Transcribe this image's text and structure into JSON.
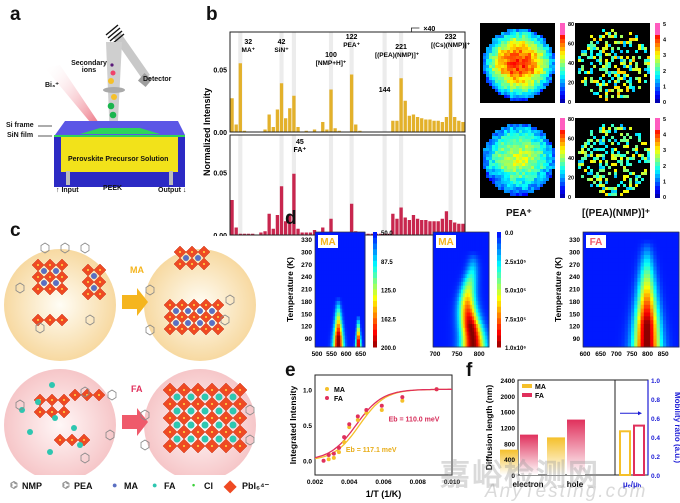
{
  "panel_labels": {
    "a": "a",
    "b": "b",
    "c": "c",
    "d": "d",
    "e": "e",
    "f": "f"
  },
  "panel_a": {
    "secondary_ions": "Secondary ions",
    "detector": "Detector",
    "beam": "Bi₃⁺",
    "si_frame": "Si frame",
    "sin_film": "SiN film",
    "solution": "Perovskite Precursor Solution",
    "peek": "PEEK",
    "input": "Input",
    "output": "Output",
    "colors": {
      "frame": "#5b57e6",
      "film": "#2fd35a",
      "solution": "#f2e21a",
      "base": "#2c2ac4"
    }
  },
  "chart_data": [
    {
      "id": "panel_b",
      "type": "bar",
      "title": "",
      "xlabel": "m/z",
      "ylabel": "Normalized Intensity",
      "scale_note": "×40",
      "ylim": [
        0,
        0.08
      ],
      "y_ticks": [
        "0.00",
        "0.05"
      ],
      "x_segments": [
        {
          "range": [
            30,
            45
          ],
          "ticks": [
            "30",
            "35",
            "40",
            "45"
          ]
        },
        {
          "range": [
            95,
            125
          ],
          "ticks": [
            "100",
            "120"
          ]
        },
        {
          "range": [
            140,
            145
          ],
          "ticks": [
            "140",
            "145"
          ]
        },
        {
          "range": [
            220,
            235
          ],
          "ticks": [
            "220",
            "225",
            "230",
            "235"
          ]
        }
      ],
      "annotations_top": [
        {
          "mz": "32",
          "label": "MA⁺"
        },
        {
          "mz": "42",
          "label": "SiN⁺"
        },
        {
          "mz": "100",
          "label": "[NMP+H]⁺"
        },
        {
          "mz": "122",
          "label": "PEA⁺"
        },
        {
          "mz": "144",
          "label": ""
        },
        {
          "mz": "221",
          "label": "[(PEA)(NMP)]⁺"
        },
        {
          "mz": "232",
          "label": "[(Cs)(NMP)]⁺"
        }
      ],
      "annotations_bottom": [
        {
          "mz": "45",
          "label": "FA⁺"
        }
      ],
      "series": [
        {
          "name": "MA",
          "color": "#e3b12b",
          "values": [
            0.027,
            0.006,
            0.055,
            0.001,
            0.0,
            0.0,
            0.0,
            0.0,
            0.002,
            0.014,
            0.004,
            0.018,
            0.039,
            0.011,
            0.019,
            0.029,
            0.004,
            0.0,
            0.001,
            0.0,
            0.002,
            0.0,
            0.008,
            0.002,
            0.034,
            0.003,
            0.001,
            0.0,
            0.0,
            0.046,
            0.006,
            0.001,
            0.0,
            0.0,
            0.0,
            0.0,
            0.0,
            0.0,
            0.0,
            0.009,
            0.009,
            0.043,
            0.025,
            0.013,
            0.014,
            0.012,
            0.011,
            0.01,
            0.01,
            0.009,
            0.009,
            0.008,
            0.012,
            0.044,
            0.012,
            0.009,
            0.008
          ]
        },
        {
          "name": "FA",
          "color": "#c8264e",
          "values": [
            0.028,
            0.006,
            0.001,
            0.001,
            0.001,
            0.001,
            0.0,
            0.002,
            0.003,
            0.017,
            0.005,
            0.016,
            0.039,
            0.011,
            0.016,
            0.049,
            0.005,
            0.002,
            0.002,
            0.002,
            0.004,
            0.001,
            0.006,
            0.002,
            0.013,
            0.002,
            0.001,
            0.002,
            0.002,
            0.025,
            0.003,
            0.001,
            0.001,
            0.001,
            0.001,
            0.001,
            0.001,
            0.001,
            0.001,
            0.017,
            0.013,
            0.022,
            0.014,
            0.012,
            0.016,
            0.013,
            0.012,
            0.012,
            0.011,
            0.011,
            0.011,
            0.013,
            0.019,
            0.012,
            0.01,
            0.009,
            0.009
          ]
        }
      ]
    },
    {
      "id": "panel_b_maps",
      "type": "heatmap",
      "labels": [
        "PEA⁺",
        "[(PEA)(NMP)]⁺"
      ],
      "colorbar_left": [
        "80",
        "60",
        "40",
        "20",
        "0"
      ],
      "colorbar_right": [
        "5",
        "4",
        "3",
        "2",
        "1",
        "0"
      ]
    },
    {
      "id": "panel_d",
      "type": "heatmap",
      "xlabel": "Wavelength (nm)",
      "ylabel": "Temperature (K)",
      "y_ticks": [
        "330",
        "300",
        "270",
        "240",
        "210",
        "180",
        "150",
        "120",
        "90"
      ],
      "plots": [
        {
          "tag": "MA",
          "x_ticks": [
            "500",
            "550",
            "600",
            "650"
          ],
          "colorbar": [
            "50.0",
            "87.5",
            "125.0",
            "162.5",
            "200.0"
          ]
        },
        {
          "tag": "MA",
          "x_ticks": [
            "700",
            "750",
            "800"
          ],
          "colorbar": [
            "0.0",
            "2.5x10⁵",
            "5.0x10⁵",
            "7.5x10⁵",
            "1.0x10⁶"
          ]
        },
        {
          "tag": "FA",
          "x_ticks": [
            "600",
            "650",
            "700",
            "750",
            "800",
            "850"
          ],
          "colorbar": [
            "0.0",
            "2.5x10⁵",
            "5.0x10⁵",
            "7.5x10⁵",
            "1.0x10⁶"
          ]
        }
      ]
    },
    {
      "id": "panel_e",
      "type": "scatter",
      "xlabel": "1/T (1/K)",
      "ylabel": "Integrated Intensity",
      "xlim": [
        0.002,
        0.01
      ],
      "ylim": [
        -0.2,
        1.2
      ],
      "x_ticks": [
        "0.002",
        "0.004",
        "0.006",
        "0.008",
        "0.010"
      ],
      "y_ticks": [
        "0.0",
        "0.5",
        "1.0"
      ],
      "series": [
        {
          "name": "MA",
          "color": "#f5c02a",
          "fit_label": "E_b = 117.1 meV",
          "x": [
            0.0028,
            0.0031,
            0.0034,
            0.0037,
            0.004,
            0.0045,
            0.005,
            0.0059,
            0.0071,
            0.0091
          ],
          "y": [
            0.02,
            0.04,
            0.12,
            0.26,
            0.47,
            0.57,
            0.67,
            0.71,
            0.84,
            1.0
          ]
        },
        {
          "name": "FA",
          "color": "#e0305c",
          "fit_label": "E_b = 110.0 meV",
          "x": [
            0.0025,
            0.0028,
            0.0031,
            0.0034,
            0.0037,
            0.004,
            0.0045,
            0.005,
            0.0059,
            0.0071,
            0.0091
          ],
          "y": [
            0.0,
            0.08,
            0.1,
            0.18,
            0.33,
            0.51,
            0.62,
            0.71,
            0.77,
            0.89,
            1.0
          ]
        }
      ],
      "fits": [
        {
          "name": "MA",
          "color": "#f5c02a",
          "x0": 0.0046,
          "k": 1350
        },
        {
          "name": "FA",
          "color": "#e0305c",
          "x0": 0.0044,
          "k": 1300
        }
      ]
    },
    {
      "id": "panel_f",
      "type": "bar",
      "ylabel": "Diffusion length (nm)",
      "y2label": "Mobility ratio (a.u.)",
      "ylim": [
        0,
        2400
      ],
      "y2lim": [
        0,
        1.0
      ],
      "y_ticks": [
        "0",
        "400",
        "800",
        "1200",
        "1600",
        "2000",
        "2400"
      ],
      "y2_ticks": [
        "0.0",
        "0.2",
        "0.4",
        "0.6",
        "0.8",
        "1.0"
      ],
      "categories": [
        "electron",
        "hole",
        "μₑ/μₕ"
      ],
      "series": [
        {
          "name": "MA",
          "color": "#f5c02a",
          "values": [
            640,
            950,
            0.46
          ]
        },
        {
          "name": "FA",
          "color": "#e0305c",
          "values": [
            1020,
            1400,
            0.52
          ]
        }
      ]
    }
  ],
  "panel_c": {
    "arrow_ma": "MA",
    "arrow_fa": "FA",
    "legend": [
      {
        "icon": "nmp-molecule-icon",
        "label": "NMP"
      },
      {
        "icon": "pea-molecule-icon",
        "label": "PEA"
      },
      {
        "icon": "ma-dot-icon",
        "label": "MA",
        "color": "#5a6fc2"
      },
      {
        "icon": "fa-dot-icon",
        "label": "FA",
        "color": "#2ec6b0"
      },
      {
        "icon": "cl-dot-icon",
        "label": "Cl",
        "color": "#3ad13a"
      },
      {
        "icon": "octahedron-icon",
        "label": "PbI₆⁴⁻",
        "color": "#ef4a23"
      }
    ]
  },
  "watermark": {
    "cn": "嘉峪检测网",
    "en": "AnyTesting.com"
  }
}
